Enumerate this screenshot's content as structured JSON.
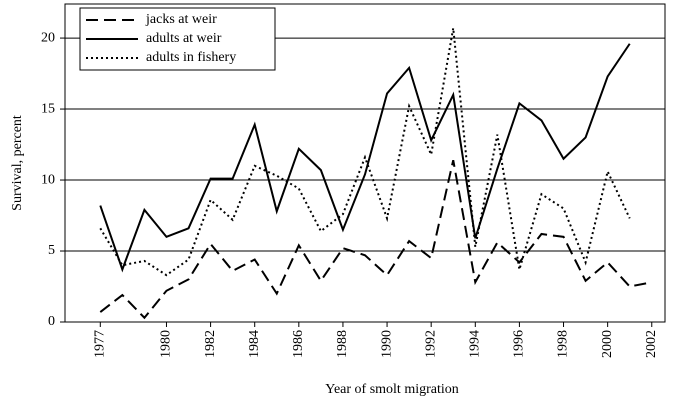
{
  "chart_data": {
    "type": "line",
    "x_label": "Year of smolt migration",
    "y_label": "Survival, percent",
    "x": [
      1977,
      1978,
      1979,
      1980,
      1981,
      1982,
      1983,
      1984,
      1985,
      1986,
      1987,
      1988,
      1989,
      1990,
      1991,
      1992,
      1993,
      1994,
      1995,
      1996,
      1997,
      1998,
      1999,
      2000,
      2001,
      2002
    ],
    "series": [
      {
        "name": "jacks at weir",
        "color": "#000000",
        "dash": "dashed",
        "values": [
          0.7,
          1.9,
          0.3,
          2.2,
          3.0,
          5.5,
          3.6,
          4.4,
          2.0,
          5.4,
          2.9,
          5.2,
          4.7,
          3.3,
          5.7,
          4.5,
          11.4,
          2.8,
          5.6,
          4.2,
          6.2,
          6.0,
          2.9,
          4.2,
          2.5,
          2.8
        ]
      },
      {
        "name": "adults at weir",
        "color": "#000000",
        "dash": "solid",
        "values": [
          8.2,
          3.7,
          7.9,
          6.0,
          6.6,
          10.1,
          10.1,
          13.9,
          7.8,
          12.2,
          10.7,
          6.5,
          10.4,
          16.1,
          17.9,
          12.8,
          16.0,
          5.9,
          10.8,
          15.4,
          14.2,
          11.5,
          13.0,
          17.3,
          19.6,
          null
        ]
      },
      {
        "name": "adults in fishery",
        "color": "#000000",
        "dash": "dotted",
        "values": [
          6.6,
          4.0,
          4.3,
          3.3,
          4.4,
          8.6,
          7.2,
          11.0,
          10.3,
          9.4,
          6.4,
          7.6,
          11.6,
          7.3,
          15.2,
          11.8,
          20.7,
          5.3,
          13.2,
          3.7,
          9.0,
          8.0,
          4.2,
          10.6,
          7.3,
          null
        ]
      }
    ],
    "xlim": [
      1975.4,
      2002.6
    ],
    "xticks": [
      1977,
      1980,
      1982,
      1984,
      1986,
      1988,
      1990,
      1992,
      1994,
      1996,
      1998,
      2000,
      2002
    ],
    "ylim": [
      0,
      22.4
    ],
    "yticks": [
      0,
      5,
      10,
      15,
      20
    ],
    "grid": true,
    "legend": "upper left"
  }
}
